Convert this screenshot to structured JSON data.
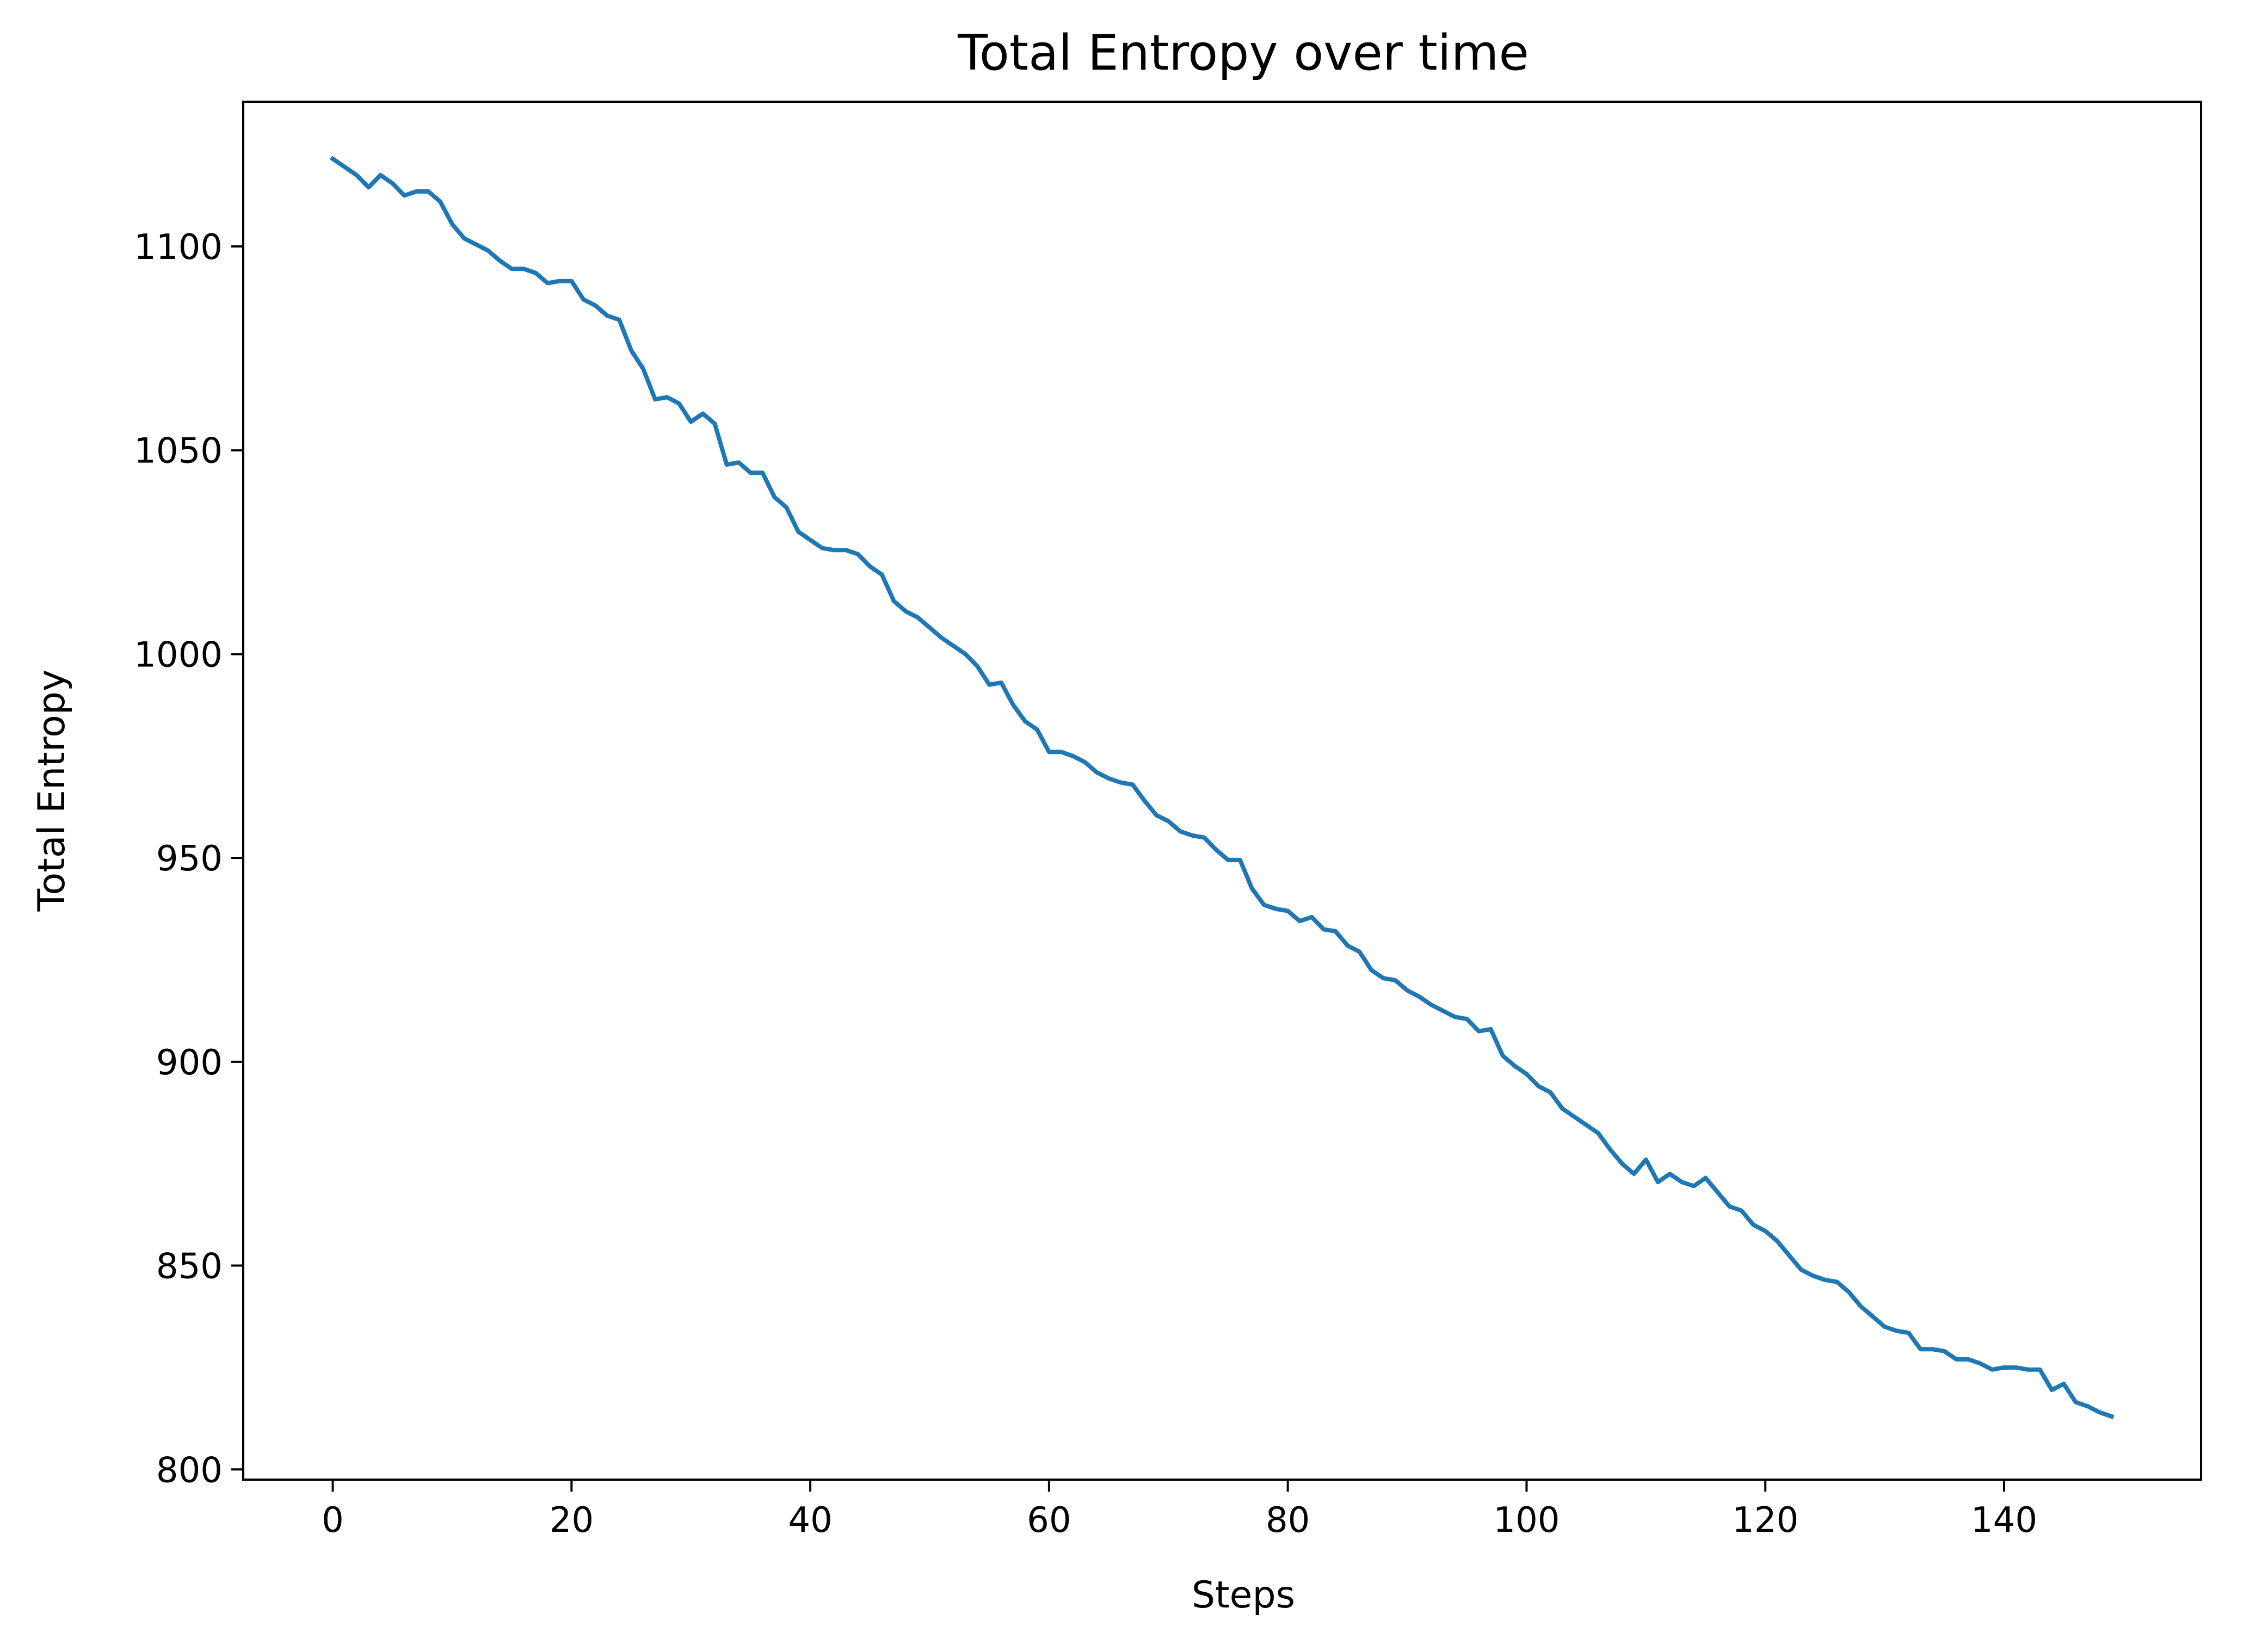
{
  "chart_data": {
    "type": "line",
    "title": "Total Entropy over time",
    "xlabel": "Steps",
    "ylabel": "Total Entropy",
    "xlim": [
      -7.5,
      156.5
    ],
    "ylim": [
      797.5,
      1135.5
    ],
    "xticks": [
      0,
      20,
      40,
      60,
      80,
      100,
      120,
      140
    ],
    "yticks": [
      800,
      850,
      900,
      950,
      1000,
      1050,
      1100
    ],
    "grid": false,
    "legend": "none",
    "series": [
      {
        "color": "#1f77b4",
        "x_start": 0,
        "x_step": 1,
        "values": [
          1121.5,
          1119.5,
          1117.5,
          1114.5,
          1117.5,
          1115.5,
          1112.5,
          1113.5,
          1113.5,
          1111.0,
          1105.5,
          1102.0,
          1100.5,
          1099.0,
          1096.5,
          1094.5,
          1094.5,
          1093.5,
          1091.0,
          1091.5,
          1091.5,
          1087.0,
          1085.5,
          1083.0,
          1082.0,
          1074.5,
          1070.0,
          1062.5,
          1063.0,
          1061.5,
          1057.0,
          1059.0,
          1056.5,
          1046.5,
          1047.0,
          1044.5,
          1044.5,
          1038.5,
          1036.0,
          1030.0,
          1028.0,
          1026.0,
          1025.5,
          1025.5,
          1024.5,
          1021.5,
          1019.5,
          1013.0,
          1010.5,
          1009.0,
          1006.5,
          1004.0,
          1002.0,
          1000.0,
          997.0,
          992.5,
          993.0,
          987.5,
          983.5,
          981.5,
          976.0,
          976.0,
          975.0,
          973.5,
          971.0,
          969.5,
          968.5,
          968.0,
          964.0,
          960.5,
          959.0,
          956.5,
          955.5,
          955.0,
          952.0,
          949.5,
          949.5,
          942.5,
          938.5,
          937.5,
          937.0,
          934.5,
          935.5,
          932.5,
          932.0,
          928.5,
          927.0,
          922.5,
          920.5,
          920.0,
          917.5,
          916.0,
          914.0,
          912.5,
          911.0,
          910.5,
          907.5,
          908.0,
          901.5,
          899.0,
          897.0,
          894.0,
          892.5,
          888.5,
          886.5,
          884.5,
          882.5,
          878.5,
          875.0,
          872.5,
          876.0,
          870.5,
          872.5,
          870.5,
          869.5,
          871.5,
          868.0,
          864.5,
          863.5,
          860.0,
          858.5,
          856.0,
          852.5,
          849.0,
          847.5,
          846.5,
          846.0,
          843.5,
          840.0,
          837.5,
          835.0,
          834.0,
          833.5,
          829.5,
          829.5,
          829.0,
          827.0,
          827.0,
          826.0,
          824.5,
          825.0,
          825.0,
          824.5,
          824.5,
          819.5,
          821.0,
          816.5,
          815.5,
          814.0,
          813.0
        ]
      }
    ]
  }
}
